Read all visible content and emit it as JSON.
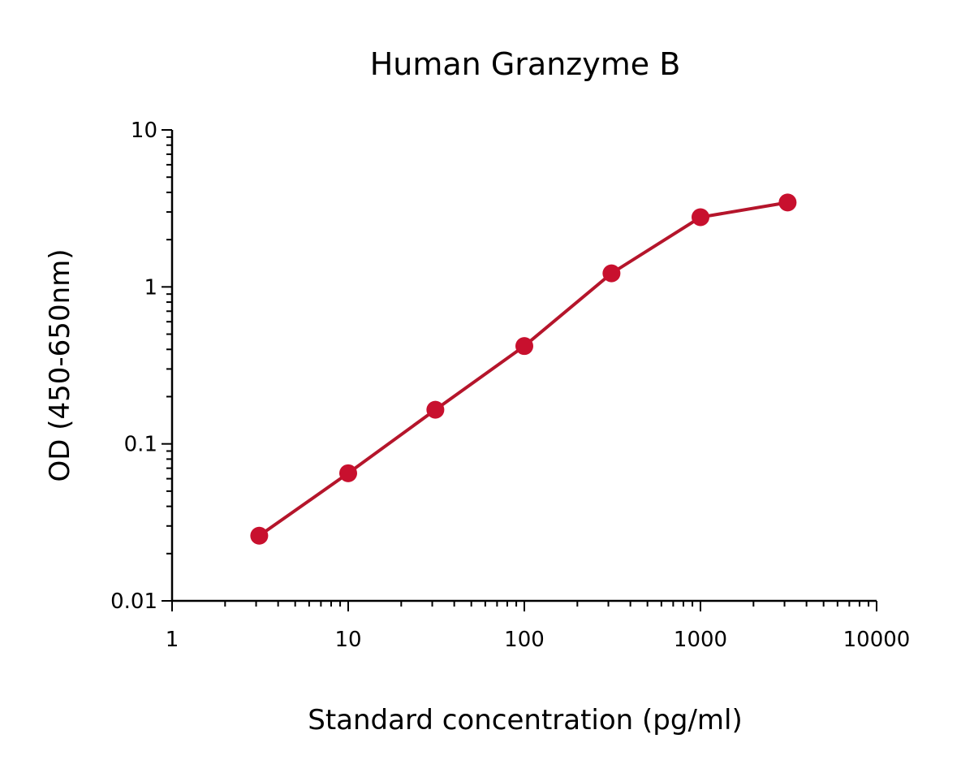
{
  "chart_data": {
    "type": "line",
    "title": "Human Granzyme B",
    "xlabel": "Standard concentration (pg/ml)",
    "ylabel": "OD (450-650nm)",
    "xscale": "log",
    "yscale": "log",
    "xlim": [
      1,
      10000
    ],
    "ylim": [
      0.01,
      10
    ],
    "xticks": [
      "1",
      "10",
      "100",
      "1000",
      "10000"
    ],
    "yticks": [
      "0.01",
      "0.1",
      "1",
      "10"
    ],
    "grid": false,
    "legend": "none",
    "series": [
      {
        "color": "#c8102e",
        "x": [
          3.125,
          10,
          31.25,
          100,
          312.5,
          1000,
          3125
        ],
        "y": [
          0.026,
          0.065,
          0.165,
          0.42,
          1.22,
          2.78,
          3.45
        ]
      }
    ]
  }
}
